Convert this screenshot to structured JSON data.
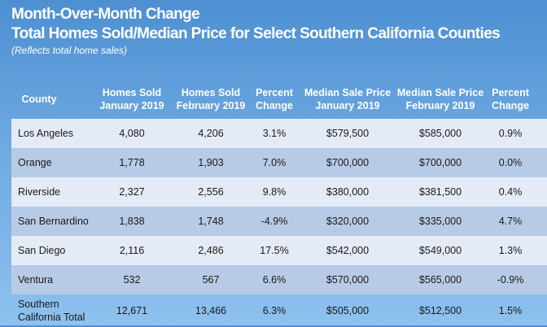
{
  "chart_data": {
    "type": "table",
    "title": "Month-Over-Month Change",
    "subtitle": "Total Homes Sold/Median Price for Select Southern California Counties",
    "note": "(Reflects total home sales)",
    "columns": [
      "County",
      "Homes Sold January 2019",
      "Homes Sold February 2019",
      "Percent Change",
      "Median Sale Price January 2019",
      "Median Sale Price February 2019",
      "Percent Change"
    ],
    "header_lines": [
      [
        "County"
      ],
      [
        "Homes Sold",
        "January 2019"
      ],
      [
        "Homes Sold",
        "February 2019"
      ],
      [
        "Percent",
        "Change"
      ],
      [
        "Median Sale Price",
        "January 2019"
      ],
      [
        "Median Sale Price",
        "February 2019"
      ],
      [
        "Percent",
        "Change"
      ]
    ],
    "rows": [
      [
        "Los Angeles",
        "4,080",
        "4,206",
        "3.1%",
        "$579,500",
        "$585,000",
        "0.9%"
      ],
      [
        "Orange",
        "1,778",
        "1,903",
        "7.0%",
        "$700,000",
        "$700,000",
        "0.0%"
      ],
      [
        "Riverside",
        "2,327",
        "2,556",
        "9.8%",
        "$380,000",
        "$381,500",
        "0.4%"
      ],
      [
        "San Bernardino",
        "1,838",
        "1,748",
        "-4.9%",
        "$320,000",
        "$335,000",
        "4.7%"
      ],
      [
        "San Diego",
        "2,116",
        "2,486",
        "17.5%",
        "$542,000",
        "$549,000",
        "1.3%"
      ],
      [
        "Ventura",
        "532",
        "567",
        "6.6%",
        "$570,000",
        "$565,000",
        "-0.9%"
      ],
      [
        "Southern\nCalifornia Total",
        "12,671",
        "13,466",
        "6.3%",
        "$505,000",
        "$512,500",
        "1.5%"
      ]
    ],
    "colors": {
      "background_top": "#4d8fd2",
      "background_bottom": "#8ec1ee",
      "row_light": "#e4ebf6",
      "row_dark": "#b8cbe6",
      "header_text": "#ffffff"
    }
  }
}
